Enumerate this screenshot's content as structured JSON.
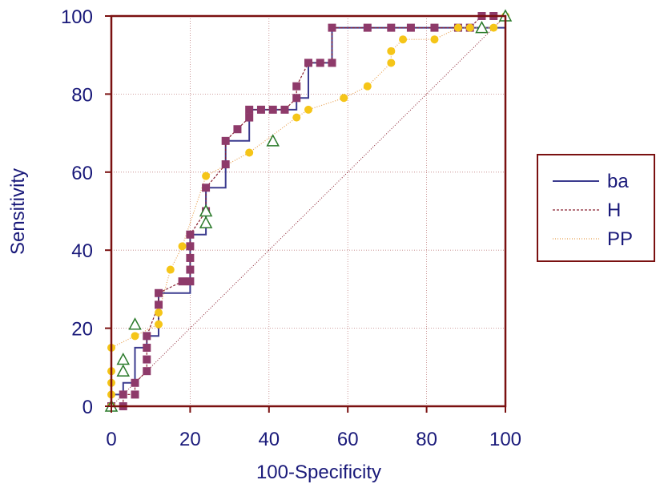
{
  "chart_data": {
    "type": "line",
    "xlabel": "100-Specificity",
    "ylabel": "Sensitivity",
    "xlim": [
      0,
      100
    ],
    "ylim": [
      0,
      100
    ],
    "x_ticks": [
      "0",
      "20",
      "40",
      "60",
      "80",
      "100"
    ],
    "y_ticks": [
      "0",
      "20",
      "40",
      "60",
      "80",
      "100"
    ],
    "grid": true,
    "legend_position": "right",
    "colors": {
      "frame": "#7a1010",
      "grid": "#c08080",
      "text": "#1a1a7a",
      "diagonal": "#8a2030"
    },
    "series": [
      {
        "name": "ba",
        "color": "#3b3b8f",
        "line_style": "solid",
        "marker": "none",
        "x": [
          0,
          0,
          3,
          3,
          6,
          6,
          9,
          9,
          12,
          12,
          20,
          20,
          24,
          24,
          29,
          29,
          35,
          35,
          47,
          47,
          50,
          50,
          56,
          56,
          100,
          100
        ],
        "y": [
          0,
          3,
          3,
          6,
          6,
          15,
          15,
          18,
          18,
          29,
          29,
          44,
          44,
          56,
          56,
          68,
          68,
          76,
          76,
          79,
          79,
          88,
          88,
          97,
          97,
          100
        ]
      },
      {
        "name": "H",
        "color": "#8a2030",
        "line_style": "dashed",
        "marker": "square",
        "marker_color": "#8e3a6a",
        "x": [
          0,
          3,
          3,
          6,
          6,
          9,
          9,
          9,
          9,
          12,
          12,
          18,
          20,
          20,
          20,
          20,
          20,
          24,
          24,
          29,
          29,
          32,
          35,
          35,
          38,
          41,
          44,
          47,
          47,
          50,
          53,
          56,
          56,
          65,
          71,
          76,
          82,
          88,
          91,
          94,
          97
        ],
        "y": [
          0,
          0,
          3,
          3,
          6,
          9,
          12,
          15,
          18,
          26,
          29,
          32,
          32,
          35,
          38,
          41,
          44,
          50,
          56,
          62,
          68,
          71,
          74,
          76,
          76,
          76,
          76,
          79,
          82,
          88,
          88,
          88,
          97,
          97,
          97,
          97,
          97,
          97,
          97,
          100,
          100
        ]
      },
      {
        "name": "PP",
        "color": "#e8a050",
        "line_style": "dotted",
        "marker": "circle",
        "marker_color": "#f5c518",
        "x": [
          0,
          0,
          0,
          0,
          0,
          6,
          12,
          12,
          15,
          18,
          24,
          35,
          47,
          50,
          59,
          65,
          71,
          71,
          74,
          82,
          88,
          91,
          97,
          100
        ],
        "y": [
          0,
          3,
          6,
          9,
          15,
          18,
          21,
          24,
          35,
          41,
          59,
          65,
          74,
          76,
          79,
          82,
          88,
          91,
          94,
          94,
          97,
          97,
          97,
          100
        ]
      },
      {
        "name": "",
        "color": "#2a7a2a",
        "line_style": "none",
        "marker": "triangle",
        "marker_color": "#2a7a2a",
        "in_legend": false,
        "x": [
          0,
          3,
          3,
          6,
          24,
          24,
          41,
          94,
          100
        ],
        "y": [
          0,
          9,
          12,
          21,
          47,
          50,
          68,
          97,
          100
        ]
      }
    ]
  }
}
